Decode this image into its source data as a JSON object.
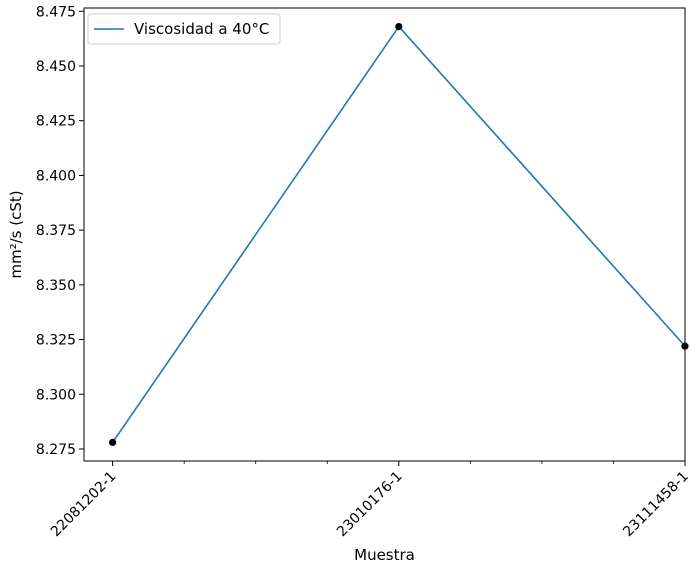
{
  "chart_data": {
    "type": "line",
    "categories": [
      "22081202-1",
      "23010176-1",
      "23111458-1"
    ],
    "series": [
      {
        "name": "Viscosidad a 40°C",
        "values": [
          8.278,
          8.468,
          8.322
        ],
        "color": "#1f77b4",
        "marker_color": "#000000"
      }
    ],
    "xlabel": "Muestra",
    "ylabel": "mm²/s (cSt)",
    "ylim": [
      8.2695,
      8.4765
    ],
    "yticks": [
      8.275,
      8.3,
      8.325,
      8.35,
      8.375,
      8.4,
      8.425,
      8.45,
      8.475
    ],
    "ytick_labels": [
      "8.275",
      "8.300",
      "8.325",
      "8.350",
      "8.375",
      "8.400",
      "8.425",
      "8.450",
      "8.475"
    ],
    "xlim": [
      -0.1,
      2.0
    ],
    "minor_x_step": 0.25,
    "grid": false,
    "legend_position": "upper-left"
  }
}
